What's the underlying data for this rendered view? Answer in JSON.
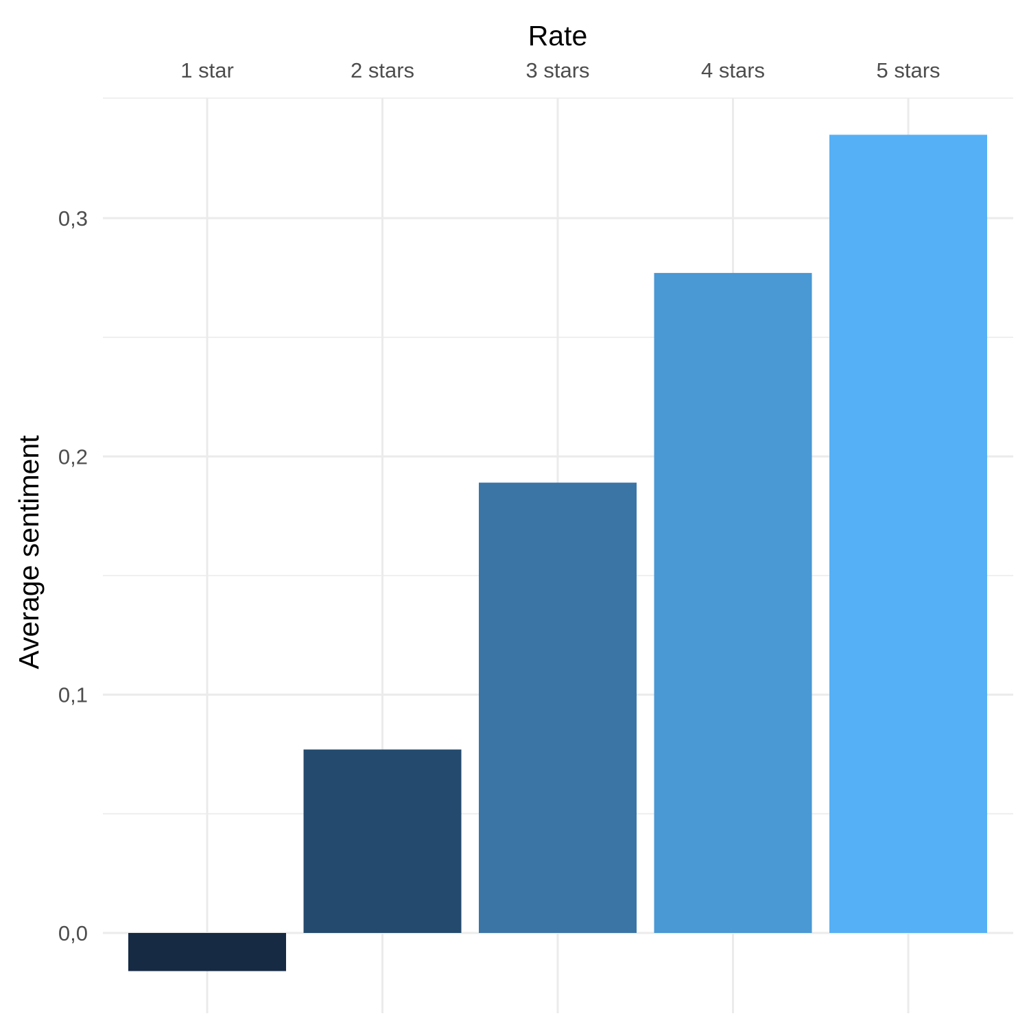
{
  "chart_data": {
    "type": "bar",
    "xlabel": "Rate",
    "ylabel": "Average sentiment",
    "x_axis_position": "top",
    "categories": [
      "1 star",
      "2 stars",
      "3 stars",
      "4 stars",
      "5 stars"
    ],
    "values": [
      -0.016,
      0.077,
      0.189,
      0.277,
      0.335
    ],
    "colors": [
      "#162a44",
      "#244a6e",
      "#3a75a6",
      "#4a98d4",
      "#56b0f5"
    ],
    "ylim": [
      -0.032,
      0.35
    ],
    "y_ticks": [
      0.0,
      0.1,
      0.2,
      0.3
    ],
    "y_tick_labels": [
      "0,0",
      "0,1",
      "0,2",
      "0,3"
    ],
    "grid": true,
    "legend": "none"
  }
}
